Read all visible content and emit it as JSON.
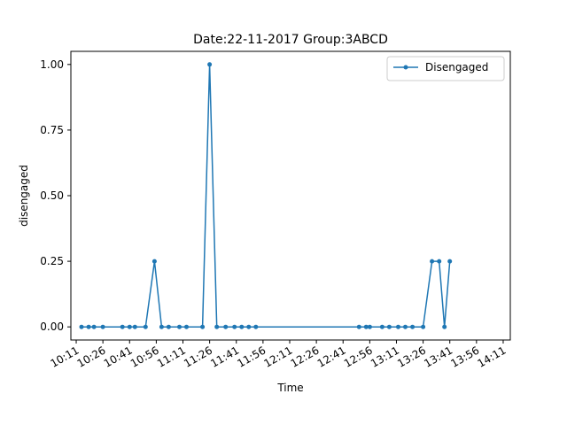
{
  "chart_data": {
    "type": "line",
    "title": "Date:22-11-2017  Group:3ABCD",
    "xlabel": "Time",
    "ylabel": "disengaged",
    "xlim": [
      "10:08",
      "14:15"
    ],
    "ylim": [
      -0.05,
      1.05
    ],
    "xticks": [
      "10:11",
      "10:26",
      "10:41",
      "10:56",
      "11:11",
      "11:26",
      "11:41",
      "11:56",
      "12:11",
      "12:26",
      "12:41",
      "12:56",
      "13:11",
      "13:26",
      "13:41",
      "13:56",
      "14:11"
    ],
    "yticks": [
      "0.00",
      "0.25",
      "0.50",
      "0.75",
      "1.00"
    ],
    "grid": false,
    "legend": {
      "position": "top-right"
    },
    "series": [
      {
        "name": "Disengaged",
        "color": "#1f77b4",
        "x": [
          "10:14",
          "10:18",
          "10:21",
          "10:26",
          "10:37",
          "10:41",
          "10:44",
          "10:50",
          "10:55",
          "10:59",
          "11:03",
          "11:09",
          "11:13",
          "11:22",
          "11:26",
          "11:30",
          "11:35",
          "11:40",
          "11:44",
          "11:48",
          "11:52",
          "12:50",
          "12:54",
          "12:56",
          "13:03",
          "13:07",
          "13:12",
          "13:16",
          "13:20",
          "13:26",
          "13:31",
          "13:35",
          "13:38",
          "13:41"
        ],
        "y": [
          0,
          0,
          0,
          0,
          0,
          0,
          0,
          0,
          0.25,
          0,
          0,
          0,
          0,
          0,
          1.0,
          0,
          0,
          0,
          0,
          0,
          0,
          0,
          0,
          0,
          0,
          0,
          0,
          0,
          0,
          0,
          0.25,
          0.25,
          0,
          0.25
        ]
      }
    ]
  }
}
